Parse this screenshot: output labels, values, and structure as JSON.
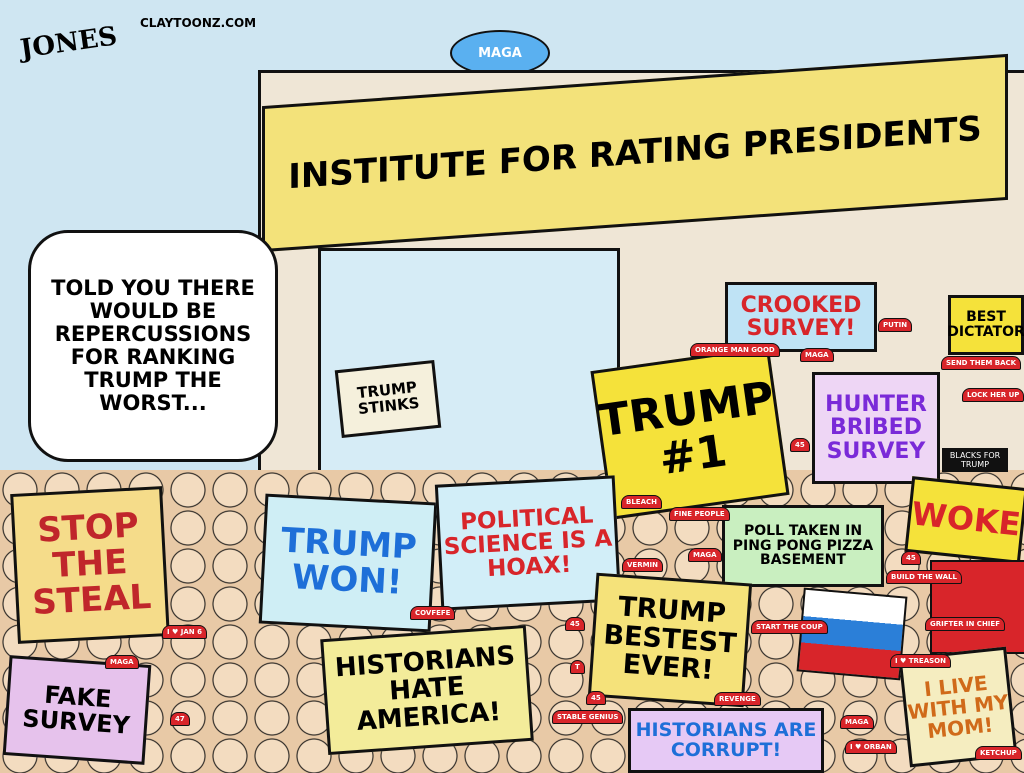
{
  "credit": {
    "signature": "JONES",
    "site": "CLAYTOONZ.COM"
  },
  "blimp": "MAGA",
  "building": {
    "title": "INSTITUTE FOR RATING PRESIDENTS",
    "color": "#f3e27a"
  },
  "speech_bubble": "TOLD YOU THERE WOULD BE REPERCUSSIONS FOR RANKING TRUMP THE WORST...",
  "window_sign": "TRUMP STINKS",
  "signs": [
    {
      "text": "CROOKED SURVEY!",
      "color": "#d8252a",
      "bg": "#bfe3f5"
    },
    {
      "text": "BEST DICTATOR",
      "color": "#111",
      "bg": "#f5e23a"
    },
    {
      "text": "TRUMP #1",
      "color": "#111",
      "bg": "#f5e23a"
    },
    {
      "text": "HUNTER BRIBED SURVEY",
      "color": "#7a2ad8",
      "bg": "#eed6f5"
    },
    {
      "text": "STOP THE STEAL",
      "color": "#c0262b",
      "bg": "#f5dc8a"
    },
    {
      "text": "TRUMP WON!",
      "color": "#1e6fd8",
      "bg": "#cfeef5"
    },
    {
      "text": "POLITICAL SCIENCE IS A HOAX!",
      "color": "#d8252a",
      "bg": "#d2eef8"
    },
    {
      "text": "POLL TAKEN IN PING PONG PIZZA BASEMENT",
      "color": "#111",
      "bg": "#c9efc0"
    },
    {
      "text": "WOKE",
      "color": "#d8252a",
      "bg": "#f5e23a"
    },
    {
      "text": "TRUMP BESTEST EVER!",
      "color": "#111",
      "bg": "#f5e27a"
    },
    {
      "text": "HISTORIANS HATE AMERICA!",
      "color": "#111",
      "bg": "#f3ec9a"
    },
    {
      "text": "FAKE SURVEY",
      "color": "#111",
      "bg": "#e6c2ec"
    },
    {
      "text": "HISTORIANS ARE CORRUPT!",
      "color": "#1e6fd8",
      "bg": "#e6c9f5"
    },
    {
      "text": "I LIVE WITH MY MOM!",
      "color": "#d06a1a",
      "bg": "#f5edc0"
    }
  ],
  "shirt": "BLACKS FOR TRUMP",
  "caps": [
    "ORANGE MAN GOOD",
    "MAGA",
    "PUTIN",
    "SEND THEM BACK",
    "LOCK HER UP",
    "45",
    "BLEACH",
    "FINE PEOPLE",
    "VERMIN",
    "MAGA",
    "BUILD THE WALL",
    "45",
    "COVFEFE",
    "45",
    "I ♥ JAN 6",
    "MAGA",
    "47",
    "T",
    "STABLE GENIUS",
    "45",
    "START THE COUP",
    "REVENGE",
    "GRIFTER IN CHIEF",
    "I ♥ TREASON",
    "MAGA",
    "I ♥ ORBAN",
    "KETCHUP"
  ]
}
